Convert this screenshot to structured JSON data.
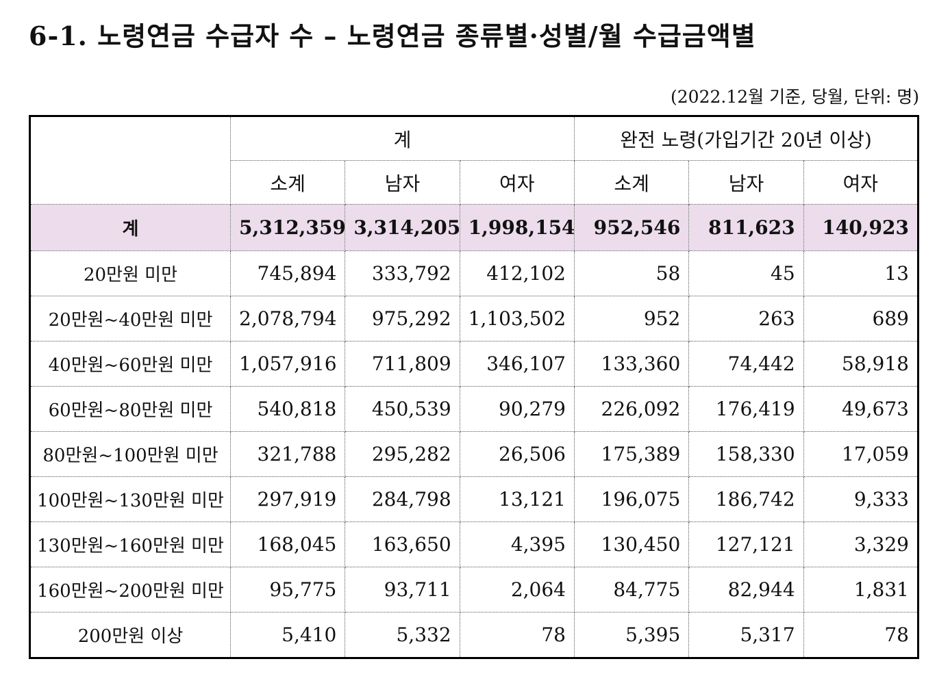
{
  "header": {
    "title": "6-1. 노령연금 수급자 수 –  노령연금 종류별·성별/월 수급금액별",
    "note": "(2022.12월 기준, 당월, 단위: 명)"
  },
  "table": {
    "group_headers": [
      "계",
      "완전 노령(가입기간 20년 이상)"
    ],
    "sub_headers": [
      "소계",
      "남자",
      "여자",
      "소계",
      "남자",
      "여자"
    ],
    "rows": [
      [
        "계",
        "5,312,359",
        "3,314,205",
        "1,998,154",
        "952,546",
        "811,623",
        "140,923"
      ],
      [
        "20만원 미만",
        "745,894",
        "333,792",
        "412,102",
        "58",
        "45",
        "13"
      ],
      [
        "20만원~40만원 미만",
        "2,078,794",
        "975,292",
        "1,103,502",
        "952",
        "263",
        "689"
      ],
      [
        "40만원~60만원 미만",
        "1,057,916",
        "711,809",
        "346,107",
        "133,360",
        "74,442",
        "58,918"
      ],
      [
        "60만원~80만원 미만",
        "540,818",
        "450,539",
        "90,279",
        "226,092",
        "176,419",
        "49,673"
      ],
      [
        "80만원~100만원 미만",
        "321,788",
        "295,282",
        "26,506",
        "175,389",
        "158,330",
        "17,059"
      ],
      [
        "100만원~130만원 미만",
        "297,919",
        "284,798",
        "13,121",
        "196,075",
        "186,742",
        "9,333"
      ],
      [
        "130만원~160만원 미만",
        "168,045",
        "163,650",
        "4,395",
        "130,450",
        "127,121",
        "3,329"
      ],
      [
        "160만원~200만원 미만",
        "95,775",
        "93,711",
        "2,064",
        "84,775",
        "82,944",
        "1,831"
      ],
      [
        "200만원 이상",
        "5,410",
        "5,332",
        "78",
        "5,395",
        "5,317",
        "78"
      ]
    ]
  }
}
